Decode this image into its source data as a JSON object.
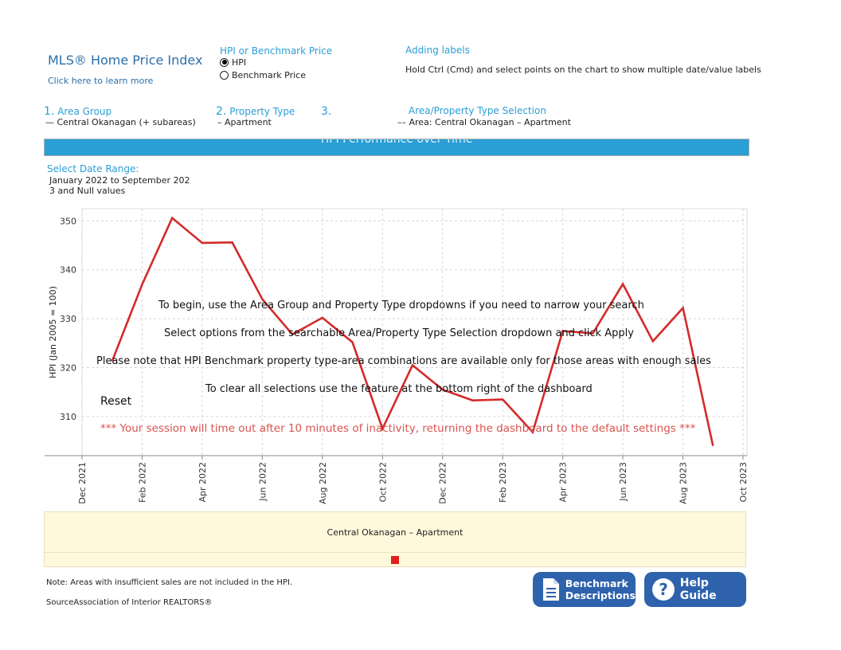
{
  "header": {
    "title": "MLS® Home Price Index",
    "learn_more": "Click here to learn more"
  },
  "measure": {
    "label": "HPI or Benchmark Price",
    "options": [
      {
        "label": "HPI",
        "selected": true
      },
      {
        "label": "Benchmark Price",
        "selected": false
      }
    ]
  },
  "labels_help": {
    "title": "Adding labels",
    "text": "Hold Ctrl (Cmd) and select points on the chart to show multiple date/value labels"
  },
  "filters": {
    "area_group": {
      "number": "1.",
      "label": "Area Group",
      "value": "— Central Okanagan (+ subareas)"
    },
    "property_type": {
      "number": "2.",
      "label": "Property Type",
      "value": "– Apartment"
    },
    "selection": {
      "number": "3.",
      "label": "Area/Property Type Selection",
      "value": "–– Area: Central Okanagan – Apartment"
    }
  },
  "banner": {
    "title": "HPI Performance over Time"
  },
  "date_range": {
    "label": "Select Date Range:",
    "line1": "January 2022 to September 202",
    "line2": "3 and Null values"
  },
  "overlay": {
    "line1": "To begin, use the Area Group and Property Type dropdowns if you need to narrow your search",
    "line2": "Select options from the searchable Area/Property Type Selection dropdown and click Apply",
    "line3": "Please note that HPI Benchmark property type-area combinations are available only for those areas with enough sales",
    "line4": "To clear all selections use the   feature at the bottom right of the dashboard",
    "reset": "Reset",
    "timeout": "*** Your session will time out after 10 minutes of inactivity, returning the dashboard to the default settings ***"
  },
  "legend": {
    "label": "Central Okanagan – Apartment",
    "swatch_color": "#e0201c"
  },
  "footer": {
    "note": "Note: Areas with insufficient sales are not included in the HPI.",
    "source_label": "Source",
    "source_value": "Association of Interior REALTORS®"
  },
  "buttons": {
    "benchmark": {
      "line1": "Benchmark",
      "line2": "Descriptions",
      "icon": "document-icon"
    },
    "help": {
      "label": "Help Guide",
      "icon": "question-icon"
    }
  },
  "chart_data": {
    "type": "line",
    "ylabel": "HPI (Jan 2005 = 100)",
    "xlabel": "",
    "x_tick_labels": [
      "Dec 2021",
      "Feb 2022",
      "Apr 2022",
      "Jun 2022",
      "Aug 2022",
      "Oct 2022",
      "Dec 2022",
      "Feb 2023",
      "Apr 2023",
      "Jun 2023",
      "Aug 2023",
      "Oct 2023"
    ],
    "y_ticks": [
      310,
      320,
      330,
      340,
      350
    ],
    "ylim": [
      302,
      352.5
    ],
    "grid": true,
    "series": [
      {
        "name": "Central Okanagan – Apartment",
        "color": "#d42a2a",
        "x": [
          "2022-01",
          "2022-02",
          "2022-03",
          "2022-04",
          "2022-05",
          "2022-06",
          "2022-07",
          "2022-08",
          "2022-09",
          "2022-10",
          "2022-11",
          "2022-12",
          "2023-01",
          "2023-02",
          "2023-03",
          "2023-04",
          "2023-05",
          "2023-06",
          "2023-07",
          "2023-08",
          "2023-09"
        ],
        "values": [
          321.3,
          337.0,
          350.6,
          345.5,
          345.6,
          334.0,
          326.8,
          330.2,
          325.2,
          307.5,
          320.5,
          315.5,
          313.3,
          313.5,
          306.8,
          327.5,
          327.0,
          337.1,
          325.4,
          332.2,
          304.0
        ]
      }
    ]
  }
}
